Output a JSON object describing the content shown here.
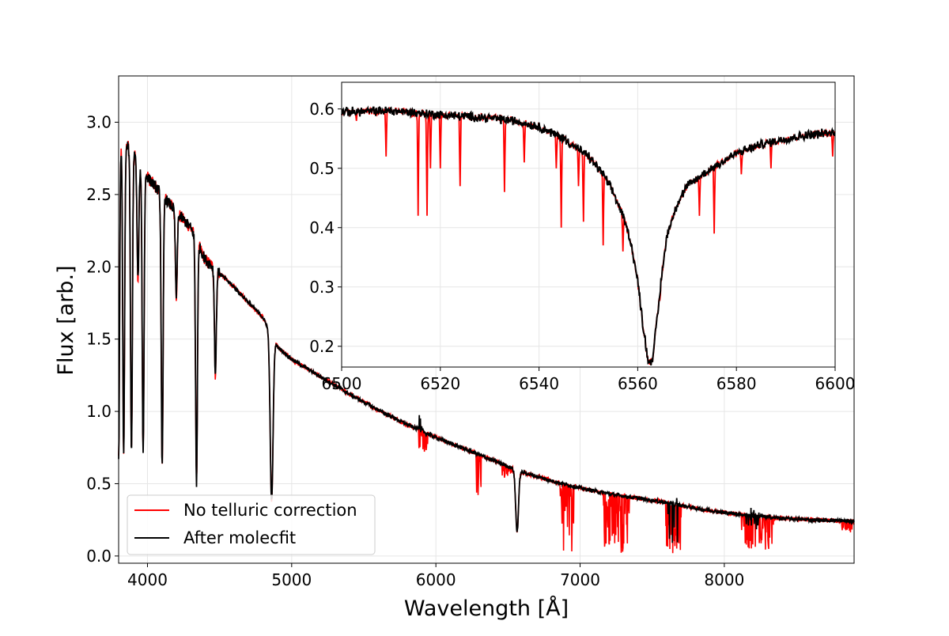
{
  "chart_data": [
    {
      "name": "main",
      "type": "line",
      "title": "",
      "xlabel": "Wavelength [Å]",
      "ylabel": "Flux [arb.]",
      "xlim": [
        3800,
        8900
      ],
      "ylim": [
        -0.05,
        3.32
      ],
      "xticks": [
        4000,
        5000,
        6000,
        7000,
        8000
      ],
      "yticks": [
        0.0,
        0.5,
        1.0,
        1.5,
        2.0,
        2.5,
        3.0
      ],
      "xtick_labels": [
        "4000",
        "5000",
        "6000",
        "7000",
        "8000"
      ],
      "ytick_labels": [
        "0.0",
        "0.5",
        "1.0",
        "1.5",
        "2.0",
        "2.5",
        "3.0"
      ],
      "grid": true,
      "legend": {
        "placement": "lower-left",
        "entries": [
          "No telluric correction",
          "After molecfit"
        ]
      },
      "series": [
        {
          "name": "No telluric correction",
          "color": "#ff0000",
          "continuum": [
            [
              3800,
              2.9
            ],
            [
              3900,
              2.8
            ],
            [
              4000,
              2.62
            ],
            [
              4100,
              2.5
            ],
            [
              4200,
              2.38
            ],
            [
              4300,
              2.27
            ],
            [
              4400,
              2.05
            ],
            [
              4600,
              1.86
            ],
            [
              4800,
              1.65
            ],
            [
              4900,
              1.45
            ],
            [
              5000,
              1.36
            ],
            [
              5200,
              1.24
            ],
            [
              5400,
              1.12
            ],
            [
              5600,
              1.01
            ],
            [
              5800,
              0.91
            ],
            [
              6000,
              0.82
            ],
            [
              6200,
              0.74
            ],
            [
              6400,
              0.66
            ],
            [
              6600,
              0.58
            ],
            [
              6800,
              0.52
            ],
            [
              7000,
              0.47
            ],
            [
              7200,
              0.43
            ],
            [
              7400,
              0.4
            ],
            [
              7600,
              0.37
            ],
            [
              7800,
              0.33
            ],
            [
              8000,
              0.3
            ],
            [
              8200,
              0.28
            ],
            [
              8400,
              0.26
            ],
            [
              8600,
              0.25
            ],
            [
              8800,
              0.245
            ],
            [
              8900,
              0.24
            ]
          ],
          "absorption_lines": [
            [
              3800,
              0.68
            ],
            [
              3835,
              0.7
            ],
            [
              3889,
              0.7
            ],
            [
              3934,
              1.9
            ],
            [
              3970,
              0.72
            ],
            [
              4102,
              0.6
            ],
            [
              4200,
              1.8
            ],
            [
              4340,
              0.5
            ],
            [
              4471,
              1.25
            ],
            [
              4861,
              0.38
            ],
            [
              5890,
              0.9
            ],
            [
              6563,
              0.17
            ]
          ],
          "telluric_bands": [
            [
              5880,
              5950,
              0.73
            ],
            [
              6280,
              6320,
              0.42
            ],
            [
              6460,
              6540,
              0.55
            ],
            [
              6860,
              6960,
              0.03
            ],
            [
              7160,
              7340,
              0.03
            ],
            [
              7590,
              7700,
              0.02
            ],
            [
              8120,
              8340,
              0.03
            ],
            [
              8800,
              8900,
              0.15
            ]
          ]
        },
        {
          "name": "After molecfit",
          "color": "#000000",
          "continuum": [
            [
              3800,
              2.9
            ],
            [
              3900,
              2.8
            ],
            [
              4000,
              2.62
            ],
            [
              4100,
              2.5
            ],
            [
              4200,
              2.38
            ],
            [
              4300,
              2.27
            ],
            [
              4400,
              2.05
            ],
            [
              4600,
              1.86
            ],
            [
              4800,
              1.65
            ],
            [
              4900,
              1.45
            ],
            [
              5000,
              1.36
            ],
            [
              5200,
              1.24
            ],
            [
              5400,
              1.12
            ],
            [
              5600,
              1.01
            ],
            [
              5800,
              0.91
            ],
            [
              6000,
              0.82
            ],
            [
              6200,
              0.74
            ],
            [
              6400,
              0.66
            ],
            [
              6600,
              0.58
            ],
            [
              6800,
              0.52
            ],
            [
              7000,
              0.47
            ],
            [
              7200,
              0.43
            ],
            [
              7400,
              0.4
            ],
            [
              7600,
              0.37
            ],
            [
              7800,
              0.33
            ],
            [
              8000,
              0.3
            ],
            [
              8200,
              0.28
            ],
            [
              8400,
              0.26
            ],
            [
              8600,
              0.25
            ],
            [
              8800,
              0.245
            ],
            [
              8900,
              0.24
            ]
          ],
          "absorption_lines": [
            [
              3800,
              0.68
            ],
            [
              3835,
              0.7
            ],
            [
              3889,
              0.7
            ],
            [
              3934,
              1.9
            ],
            [
              3970,
              0.72
            ],
            [
              4102,
              0.6
            ],
            [
              4200,
              1.8
            ],
            [
              4340,
              0.5
            ],
            [
              4471,
              1.25
            ],
            [
              4861,
              0.38
            ],
            [
              5890,
              0.9
            ],
            [
              6563,
              0.17
            ]
          ],
          "residual_regions": [
            [
              5880,
              5900,
              1.0
            ],
            [
              7600,
              7680,
              0.02
            ],
            [
              8150,
              8250,
              0.17
            ]
          ]
        }
      ]
    },
    {
      "name": "inset",
      "type": "line",
      "title": "",
      "xlabel": "",
      "ylabel": "",
      "xlim": [
        6500,
        6600
      ],
      "ylim": [
        0.165,
        0.645
      ],
      "xticks": [
        6500,
        6520,
        6540,
        6560,
        6580,
        6600
      ],
      "yticks": [
        0.2,
        0.3,
        0.4,
        0.5,
        0.6
      ],
      "xtick_labels": [
        "6500",
        "6520",
        "6540",
        "6560",
        "6580",
        "6600"
      ],
      "ytick_labels": [
        "0.2",
        "0.3",
        "0.4",
        "0.5",
        "0.6"
      ],
      "grid": true,
      "series": [
        {
          "name": "No telluric correction",
          "color": "#ff0000",
          "telluric_lines": [
            [
              6503,
              0.58
            ],
            [
              6509,
              0.52
            ],
            [
              6515.5,
              0.42
            ],
            [
              6517.3,
              0.42
            ],
            [
              6518,
              0.5
            ],
            [
              6520,
              0.5
            ],
            [
              6524,
              0.47
            ],
            [
              6533,
              0.46
            ],
            [
              6537,
              0.51
            ],
            [
              6543.5,
              0.5
            ],
            [
              6544.5,
              0.4
            ],
            [
              6548,
              0.47
            ],
            [
              6549,
              0.41
            ],
            [
              6553,
              0.37
            ],
            [
              6557,
              0.36
            ],
            [
              6564.5,
              0.28
            ],
            [
              6572.5,
              0.42
            ],
            [
              6575.5,
              0.39
            ],
            [
              6581,
              0.49
            ],
            [
              6587,
              0.5
            ],
            [
              6599.5,
              0.52
            ]
          ]
        },
        {
          "name": "After molecfit",
          "color": "#000000",
          "profile": [
            [
              6500,
              0.595
            ],
            [
              6510,
              0.597
            ],
            [
              6520,
              0.59
            ],
            [
              6530,
              0.585
            ],
            [
              6535,
              0.58
            ],
            [
              6540,
              0.57
            ],
            [
              6545,
              0.55
            ],
            [
              6550,
              0.52
            ],
            [
              6553,
              0.49
            ],
            [
              6555,
              0.46
            ],
            [
              6557,
              0.42
            ],
            [
              6558.5,
              0.38
            ],
            [
              6560,
              0.31
            ],
            [
              6561,
              0.24
            ],
            [
              6562,
              0.18
            ],
            [
              6562.5,
              0.172
            ],
            [
              6563,
              0.18
            ],
            [
              6564,
              0.25
            ],
            [
              6565,
              0.33
            ],
            [
              6566,
              0.39
            ],
            [
              6568,
              0.44
            ],
            [
              6570,
              0.47
            ],
            [
              6575,
              0.5
            ],
            [
              6580,
              0.525
            ],
            [
              6585,
              0.54
            ],
            [
              6590,
              0.55
            ],
            [
              6595,
              0.557
            ],
            [
              6600,
              0.56
            ]
          ]
        }
      ]
    }
  ]
}
